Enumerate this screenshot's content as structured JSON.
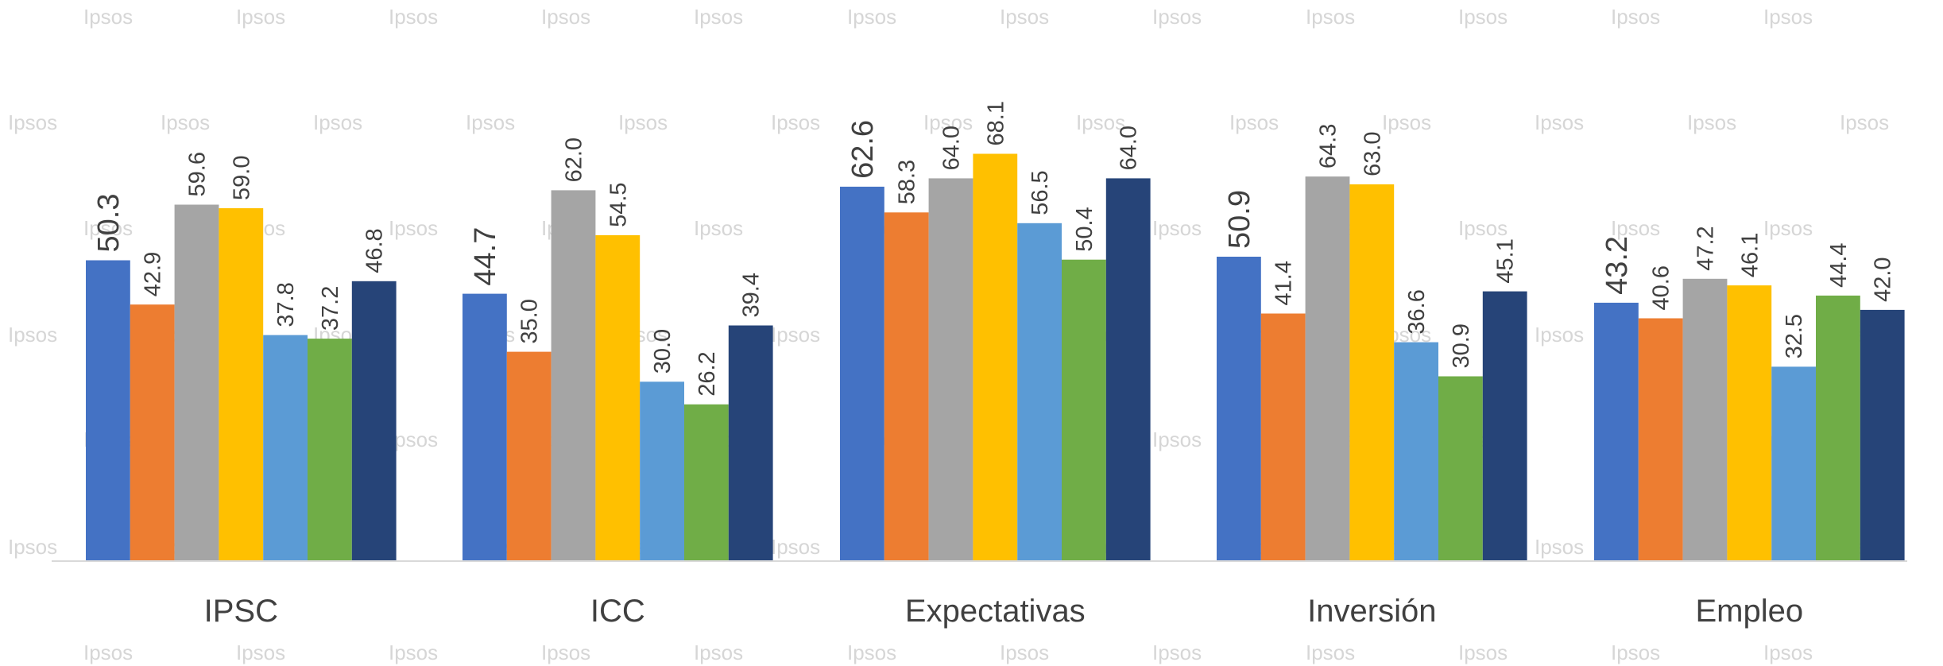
{
  "watermark": "Ipsos",
  "chart_data": {
    "type": "bar",
    "title": "",
    "xlabel": "",
    "ylabel": "",
    "ylim": [
      0,
      75
    ],
    "grid": false,
    "legend": "none",
    "categories": [
      "IPSC",
      "ICC",
      "Expectativas",
      "Inversión",
      "Empleo"
    ],
    "series": [
      {
        "color": "#4472C4",
        "values": [
          50.3,
          44.7,
          62.6,
          50.9,
          43.2
        ]
      },
      {
        "color": "#ED7D31",
        "values": [
          42.9,
          35.0,
          58.3,
          41.4,
          40.6
        ]
      },
      {
        "color": "#A5A5A5",
        "values": [
          59.6,
          62.0,
          64.0,
          64.3,
          47.2
        ]
      },
      {
        "color": "#FFC000",
        "values": [
          59.0,
          54.5,
          68.1,
          63.0,
          46.1
        ]
      },
      {
        "color": "#5B9BD5",
        "values": [
          37.8,
          30.0,
          56.5,
          36.6,
          32.5
        ]
      },
      {
        "color": "#70AD47",
        "values": [
          37.2,
          26.2,
          50.4,
          30.9,
          44.4
        ]
      },
      {
        "color": "#264478",
        "values": [
          46.8,
          39.4,
          64.0,
          45.1,
          42.0
        ]
      }
    ]
  }
}
